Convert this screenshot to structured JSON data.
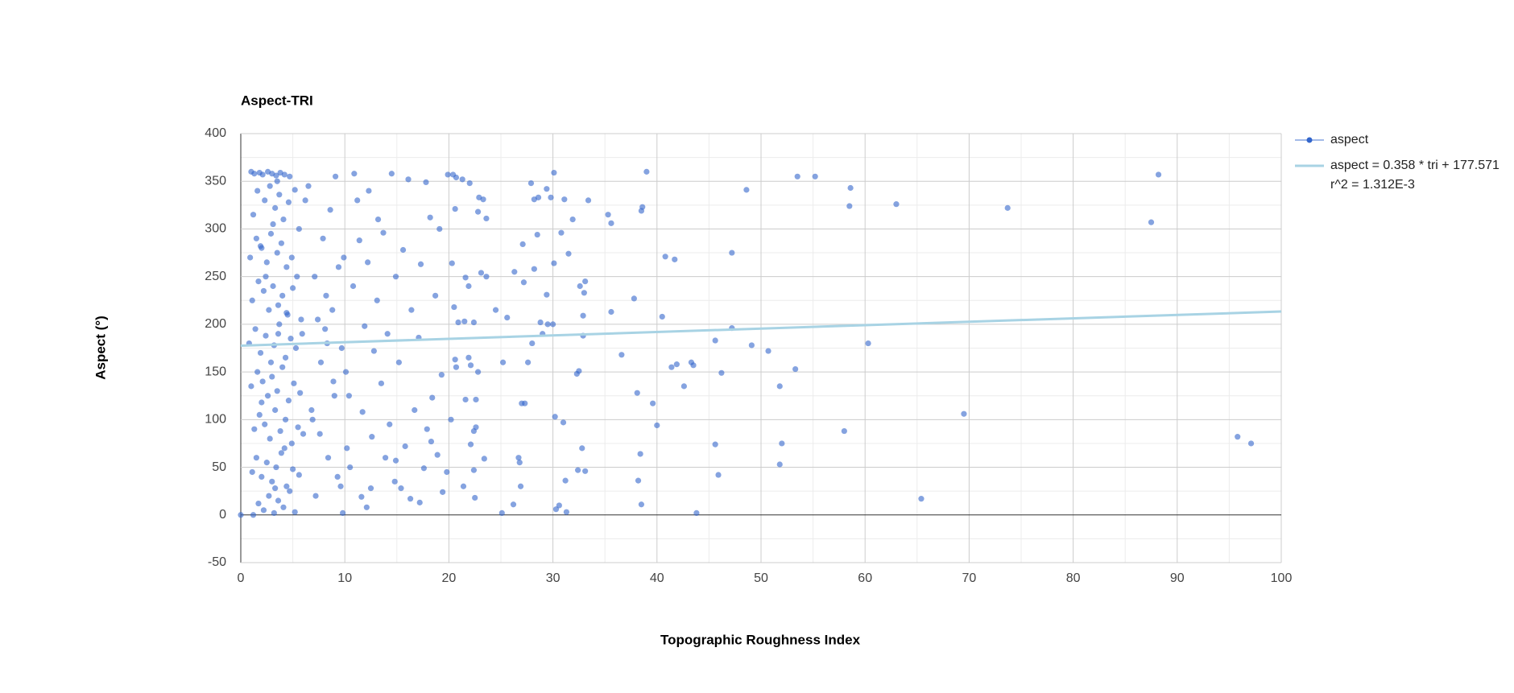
{
  "chart_data": {
    "type": "scatter",
    "title": "Aspect-TRI",
    "x_label": "Topographic Roughness Index",
    "y_label": "Aspect (°)",
    "xlim": [
      0,
      100
    ],
    "xticks": [
      0,
      10,
      20,
      30,
      40,
      50,
      60,
      70,
      80,
      90,
      100
    ],
    "ylim": [
      -50,
      400
    ],
    "yticks": [
      -50,
      0,
      50,
      100,
      150,
      200,
      250,
      300,
      350,
      400
    ],
    "grid": true,
    "minor_grid": true,
    "legend": "right",
    "series": [
      {
        "name": "aspect",
        "type": "scatter",
        "color": "#3366cc",
        "x": [
          88.2,
          87.5,
          73.7,
          63,
          58.6,
          58.5,
          55.2,
          53.5,
          48.6,
          47.2,
          41.7,
          40.8,
          40.5,
          60.3,
          50.7,
          49.1,
          53.3,
          51.8,
          47.2,
          45.6,
          46.2,
          42.6,
          43.3,
          43.5,
          41.9,
          41.4,
          39,
          38.6,
          38.5,
          37.8,
          38.1,
          39.6,
          40,
          58,
          69.5,
          95.8,
          97.1,
          52,
          51.8,
          45.6,
          45.9,
          65.4,
          43.8,
          38.5,
          38.4,
          38.2,
          32.8,
          33.1,
          32.4,
          31.2,
          30.2,
          31,
          30.6,
          30.3,
          31.3,
          25.1,
          26.2,
          26.7,
          26.8,
          26.9,
          27,
          27.3,
          27.6,
          28,
          30,
          29.5,
          29,
          28.8,
          32.3,
          32.5,
          32.9,
          32.9,
          33,
          33.1,
          32.6,
          36.6,
          35.6,
          35.3,
          35.6,
          33.4,
          31.1,
          31.9,
          31.5,
          30.8,
          30.1,
          29.4,
          29.4,
          29.8,
          30.1,
          28.6,
          28.2,
          27.9,
          28.5,
          28.2,
          27.1,
          27.2,
          26.3,
          25.6,
          25.2,
          24.5,
          23.6,
          23.1,
          23.6,
          23.3,
          22.9,
          22.8,
          22,
          21.3,
          20.7,
          20.4,
          19.9,
          20.6,
          20.3,
          21.6,
          21.9,
          22.4,
          21.5,
          20.9,
          20.5,
          20.6,
          20.7,
          21.9,
          22.1,
          22.8,
          22.6,
          21.6,
          20.2,
          22.6,
          22.4,
          22.1,
          22.4,
          23.4,
          21.4,
          22.5,
          19.8,
          19.4,
          18.9,
          18.3,
          17.6,
          17.2,
          16.3,
          15.4,
          14.8,
          14.9,
          12.1,
          12.5,
          11.6,
          10.5,
          10.2,
          9.8,
          14.5,
          16.1,
          17.8,
          18.2,
          12.3,
          13.7,
          11.2,
          15.6,
          19.1,
          17.3,
          10.8,
          13.1,
          14.9,
          16.4,
          18.7,
          11.9,
          12.8,
          15.2,
          17.1,
          19.3,
          10.4,
          11.7,
          13.5,
          14.3,
          16.7,
          18.4,
          12.6,
          15.8,
          13.9,
          17.9,
          9.1,
          8.6,
          7.9,
          9.4,
          8.2,
          7.4,
          9.7,
          8.9,
          6.8,
          7.6,
          8.4,
          9.3,
          7.2,
          6.5,
          9.9,
          8.1,
          7.7,
          6.9,
          9.6,
          8.8,
          10.9,
          11.4,
          12.2,
          13.2,
          14.1,
          6.2,
          7.1,
          8.3,
          9.0,
          10.1,
          1.0,
          1.3,
          1.8,
          2.1,
          2.6,
          3.0,
          3.4,
          3.8,
          4.2,
          4.7,
          1.2,
          1.6,
          2.3,
          2.8,
          3.3,
          3.7,
          4.1,
          4.6,
          5.2,
          5.6,
          0.9,
          1.5,
          2.0,
          2.5,
          2.9,
          3.5,
          3.9,
          4.4,
          4.9,
          5.4,
          1.1,
          1.7,
          2.2,
          2.7,
          3.1,
          3.6,
          4.0,
          4.5,
          5.0,
          5.8,
          0.8,
          1.4,
          1.9,
          2.4,
          3.2,
          3.7,
          4.3,
          4.8,
          5.3,
          5.9,
          1.0,
          1.6,
          2.1,
          2.6,
          3.0,
          3.5,
          4.0,
          4.6,
          5.1,
          5.7,
          1.3,
          1.8,
          2.3,
          2.8,
          3.3,
          3.8,
          4.3,
          4.9,
          5.5,
          6.0,
          1.1,
          1.5,
          2.0,
          2.5,
          3.0,
          3.4,
          3.9,
          4.4,
          5.0,
          5.6,
          1.2,
          1.7,
          2.2,
          2.7,
          3.2,
          3.6,
          4.1,
          4.7,
          5.2,
          0.0,
          2.4,
          3.1,
          3.6,
          4.2,
          2.0,
          2.9,
          3.5,
          4.4,
          1.9,
          3.3
        ],
        "values": [
          357,
          307,
          322,
          326,
          343,
          324,
          355,
          355,
          341,
          275,
          268,
          271,
          208,
          180,
          172,
          178,
          153,
          135,
          196,
          183,
          149,
          135,
          160,
          157,
          158,
          155,
          360,
          323,
          319,
          227,
          128,
          117,
          94,
          88,
          106,
          82,
          75,
          75,
          53,
          74,
          42,
          17,
          2,
          11,
          64,
          36,
          70,
          46,
          47,
          36,
          103,
          97,
          10,
          6,
          3,
          2,
          11,
          60,
          55,
          30,
          117,
          117,
          160,
          180,
          200,
          200,
          190,
          202,
          148,
          151,
          188,
          209,
          233,
          245,
          240,
          168,
          213,
          315,
          306,
          330,
          331,
          310,
          274,
          296,
          264,
          231,
          342,
          333,
          359,
          333,
          331,
          348,
          294,
          258,
          284,
          244,
          255,
          207,
          160,
          215,
          250,
          254,
          311,
          331,
          333,
          318,
          348,
          352,
          354,
          357,
          357,
          321,
          264,
          249,
          240,
          202,
          203,
          202,
          218,
          163,
          155,
          165,
          157,
          150,
          121,
          121,
          100,
          92,
          88,
          74,
          47,
          59,
          30,
          18,
          45,
          24,
          63,
          77,
          49,
          13,
          17,
          28,
          35,
          57,
          8,
          28,
          19,
          50,
          70,
          2,
          358,
          352,
          349,
          312,
          340,
          296,
          330,
          278,
          300,
          263,
          240,
          225,
          250,
          215,
          230,
          198,
          172,
          160,
          186,
          147,
          125,
          108,
          138,
          95,
          110,
          123,
          82,
          72,
          60,
          90,
          355,
          320,
          290,
          260,
          230,
          205,
          175,
          140,
          110,
          85,
          60,
          40,
          20,
          345,
          270,
          195,
          160,
          100,
          30,
          215,
          358,
          288,
          265,
          310,
          190,
          330,
          250,
          180,
          125,
          150,
          360,
          358,
          359,
          357,
          360,
          358,
          356,
          359,
          357,
          355,
          315,
          340,
          330,
          345,
          322,
          336,
          310,
          328,
          341,
          300,
          270,
          290,
          280,
          265,
          295,
          275,
          285,
          260,
          270,
          250,
          225,
          245,
          235,
          215,
          240,
          220,
          230,
          210,
          238,
          205,
          180,
          195,
          170,
          188,
          178,
          200,
          165,
          185,
          175,
          190,
          135,
          150,
          140,
          125,
          145,
          130,
          155,
          120,
          138,
          128,
          90,
          105,
          95,
          80,
          110,
          88,
          100,
          75,
          92,
          85,
          45,
          60,
          40,
          55,
          35,
          50,
          65,
          30,
          48,
          42,
          0,
          12,
          5,
          20,
          2,
          15,
          8,
          25,
          3,
          0,
          250,
          305,
          190,
          70,
          118,
          160,
          350,
          212,
          282,
          28
        ]
      },
      {
        "name": "aspect = 0.358 * tri + 177.571",
        "r_squared": "r^2 = 1.312E-3",
        "type": "line",
        "color": "#a8d3e4",
        "x": [
          0,
          100
        ],
        "values": [
          177.571,
          213.371
        ]
      }
    ]
  }
}
